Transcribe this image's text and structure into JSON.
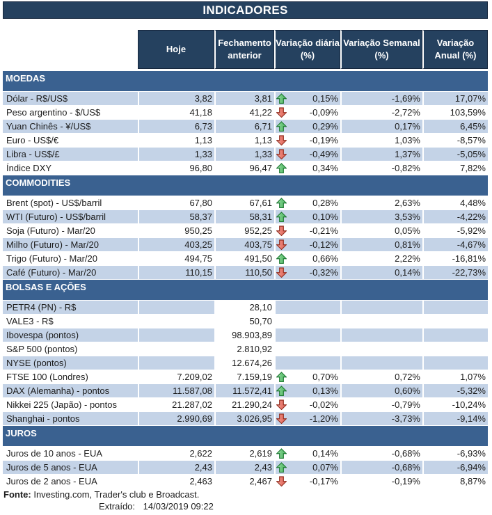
{
  "title": "INDICADORES",
  "columns": [
    {
      "line1": "Hoje",
      "line2": ""
    },
    {
      "line1": "Fechamento",
      "line2": "anterior"
    },
    {
      "line1": "Variação diária",
      "line2": "(%)"
    },
    {
      "line1": "Variação Semanal",
      "line2": "(%)"
    },
    {
      "line1": "Variação",
      "line2": "Anual (%)"
    }
  ],
  "sections": [
    {
      "name": "MOEDAS",
      "first_row_shade": "blue",
      "rows": [
        {
          "label": "Dólar - R$/US$",
          "hoje": "3,82",
          "fechamento": "3,81",
          "arrow": "up",
          "var_diaria": "0,15%",
          "var_semanal": "-1,69%",
          "var_anual": "17,07%"
        },
        {
          "label": "Peso argentino - $/US$",
          "hoje": "41,18",
          "fechamento": "41,22",
          "arrow": "down",
          "var_diaria": "-0,09%",
          "var_semanal": "-2,72%",
          "var_anual": "103,59%"
        },
        {
          "label": "Yuan Chinês - ¥/US$",
          "hoje": "6,73",
          "fechamento": "6,71",
          "arrow": "up",
          "var_diaria": "0,29%",
          "var_semanal": "0,17%",
          "var_anual": "6,45%"
        },
        {
          "label": "Euro - US$/€",
          "hoje": "1,13",
          "fechamento": "1,13",
          "arrow": "down",
          "var_diaria": "-0,19%",
          "var_semanal": "1,03%",
          "var_anual": "-8,57%"
        },
        {
          "label": "Libra - US$/£",
          "hoje": "1,33",
          "fechamento": "1,33",
          "arrow": "down",
          "var_diaria": "-0,49%",
          "var_semanal": "1,37%",
          "var_anual": "-5,05%"
        },
        {
          "label": "Índice DXY",
          "hoje": "96,80",
          "fechamento": "96,47",
          "arrow": "up",
          "var_diaria": "0,34%",
          "var_semanal": "-0,82%",
          "var_anual": "7,82%"
        }
      ]
    },
    {
      "name": "COMMODITIES",
      "first_row_shade": "white",
      "rows": [
        {
          "label": "Brent (spot) - US$/barril",
          "hoje": "67,80",
          "fechamento": "67,61",
          "arrow": "up",
          "var_diaria": "0,28%",
          "var_semanal": "2,63%",
          "var_anual": "4,48%"
        },
        {
          "label": "WTI (Futuro) - US$/barril",
          "hoje": "58,37",
          "fechamento": "58,31",
          "arrow": "up",
          "var_diaria": "0,10%",
          "var_semanal": "3,53%",
          "var_anual": "-4,22%"
        },
        {
          "label": "Soja (Futuro) - Mar/20",
          "hoje": "950,25",
          "fechamento": "952,25",
          "arrow": "down",
          "var_diaria": "-0,21%",
          "var_semanal": "0,05%",
          "var_anual": "-5,92%"
        },
        {
          "label": "Milho (Futuro) - Mar/20",
          "hoje": "403,25",
          "fechamento": "403,75",
          "arrow": "down",
          "var_diaria": "-0,12%",
          "var_semanal": "0,81%",
          "var_anual": "-4,67%"
        },
        {
          "label": "Trigo (Futuro) - Mar/20",
          "hoje": "494,75",
          "fechamento": "491,50",
          "arrow": "up",
          "var_diaria": "0,66%",
          "var_semanal": "2,22%",
          "var_anual": "-16,81%"
        },
        {
          "label": "Café (Futuro) - Mar/20",
          "hoje": "110,15",
          "fechamento": "110,50",
          "arrow": "down",
          "var_diaria": "-0,32%",
          "var_semanal": "0,14%",
          "var_anual": "-22,73%"
        }
      ]
    },
    {
      "name": "BOLSAS E AÇÕES",
      "first_row_shade": "blue",
      "rows": [
        {
          "label": "PETR4 (PN) - R$",
          "hoje": "",
          "fechamento": "28,10",
          "fech_white": true,
          "arrow": "",
          "var_diaria": "",
          "var_semanal": "",
          "var_anual": ""
        },
        {
          "label": "VALE3 - R$",
          "hoje": "",
          "fechamento": "50,70",
          "fech_white": true,
          "arrow": "",
          "var_diaria": "",
          "var_semanal": "",
          "var_anual": ""
        },
        {
          "label": "Ibovespa (pontos)",
          "hoje": "",
          "fechamento": "98.903,89",
          "fech_white": true,
          "arrow": "",
          "var_diaria": "",
          "var_semanal": "",
          "var_anual": ""
        },
        {
          "label": "S&P 500 (pontos)",
          "hoje": "",
          "fechamento": "2.810,92",
          "fech_white": true,
          "arrow": "",
          "var_diaria": "",
          "var_semanal": "",
          "var_anual": ""
        },
        {
          "label": "NYSE (pontos)",
          "hoje": "",
          "fechamento": "12.674,26",
          "fech_white": true,
          "arrow": "",
          "var_diaria": "",
          "var_semanal": "",
          "var_anual": ""
        },
        {
          "label": "FTSE 100 (Londres)",
          "hoje": "7.209,02",
          "fechamento": "7.159,19",
          "arrow": "up",
          "var_diaria": "0,70%",
          "var_semanal": "0,72%",
          "var_anual": "1,07%"
        },
        {
          "label": "DAX (Alemanha) - pontos",
          "hoje": "11.587,08",
          "fechamento": "11.572,41",
          "arrow": "up",
          "var_diaria": "0,13%",
          "var_semanal": "0,60%",
          "var_anual": "-5,32%"
        },
        {
          "label": "Nikkei 225 (Japão) - pontos",
          "hoje": "21.287,02",
          "fechamento": "21.290,24",
          "arrow": "down",
          "var_diaria": "-0,02%",
          "var_semanal": "-0,79%",
          "var_anual": "-10,24%"
        },
        {
          "label": "Shanghai - pontos",
          "hoje": "2.990,69",
          "fechamento": "3.026,95",
          "arrow": "down",
          "var_diaria": "-1,20%",
          "var_semanal": "-3,73%",
          "var_anual": "-9,14%"
        }
      ]
    },
    {
      "name": "JUROS",
      "first_row_shade": "white",
      "rows": [
        {
          "label": "Juros de 10 anos - EUA",
          "hoje": "2,622",
          "fechamento": "2,619",
          "arrow": "up",
          "var_diaria": "0,14%",
          "var_semanal": "-0,68%",
          "var_anual": "-6,93%"
        },
        {
          "label": "Juros de 5 anos - EUA",
          "hoje": "2,43",
          "fechamento": "2,43",
          "arrow": "up",
          "var_diaria": "0,07%",
          "var_semanal": "-0,68%",
          "var_anual": "-6,94%"
        },
        {
          "label": "Juros de 2 anos - EUA",
          "hoje": "2,463",
          "fechamento": "2,467",
          "arrow": "down",
          "var_diaria": "-0,17%",
          "var_semanal": "-0,19%",
          "var_anual": "8,87%"
        }
      ]
    }
  ],
  "footer": {
    "fonte_label": "Fonte:",
    "fonte_text": "Investing.com, Trader's club e Broadcast.",
    "extraido_label": "Extraído:",
    "extraido_value": "14/03/2019 09:22"
  },
  "colors": {
    "header_navy": "#25415f",
    "band_blue": "#3a6190",
    "row_blue": "#c4d3e7",
    "arrow_up_fill": "#6cc77c",
    "arrow_up_stroke": "#1e7a33",
    "arrow_down_fill": "#e87a6e",
    "arrow_down_stroke": "#942f21"
  }
}
